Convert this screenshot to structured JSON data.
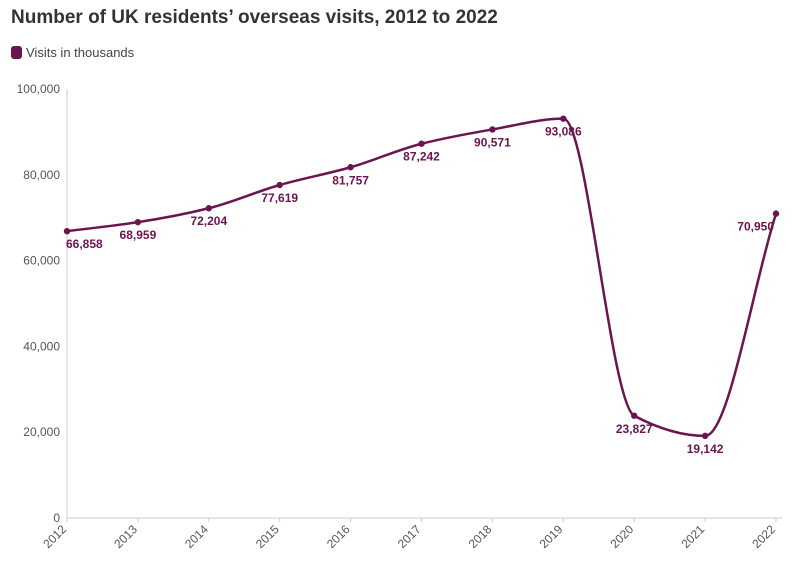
{
  "title": "Number of UK residents’ overseas visits, 2012 to 2022",
  "legend": {
    "label": "Visits in thousands"
  },
  "colors": {
    "series": "#6b1450",
    "axis": "#cccccc",
    "text": "#333333"
  },
  "chart_data": {
    "type": "line",
    "title": "Number of UK residents’ overseas visits, 2012 to 2022",
    "xlabel": "",
    "ylabel": "",
    "x": [
      "2012",
      "2013",
      "2014",
      "2015",
      "2016",
      "2017",
      "2018",
      "2019",
      "2020",
      "2021",
      "2022"
    ],
    "series": [
      {
        "name": "Visits in thousands",
        "values": [
          66858,
          68959,
          72204,
          77619,
          81757,
          87242,
          90571,
          93086,
          23827,
          19142,
          70950
        ],
        "labels": [
          "66,858",
          "68,959",
          "72,204",
          "77,619",
          "81,757",
          "87,242",
          "90,571",
          "93,086",
          "23,827",
          "19,142",
          "70,950"
        ]
      }
    ],
    "ylim": [
      0,
      100000
    ],
    "yticks": [
      0,
      20000,
      40000,
      60000,
      80000,
      100000
    ],
    "ytick_labels": [
      "0",
      "20,000",
      "40,000",
      "60,000",
      "80,000",
      "100,000"
    ],
    "grid": false,
    "legend_position": "top-left"
  }
}
